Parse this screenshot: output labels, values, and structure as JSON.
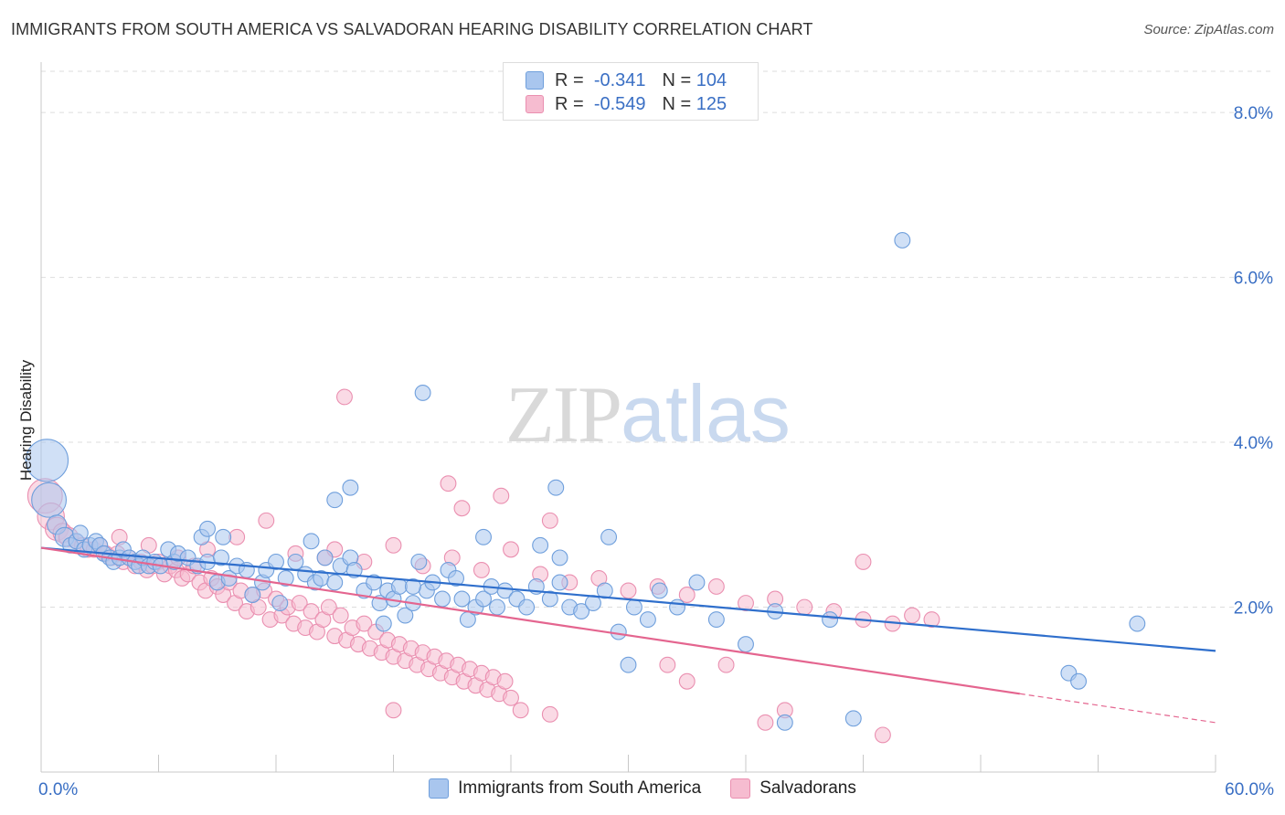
{
  "title": "IMMIGRANTS FROM SOUTH AMERICA VS SALVADORAN HEARING DISABILITY CORRELATION CHART",
  "source": "Source: ZipAtlas.com",
  "watermark": {
    "part1": "ZIP",
    "part2": "atlas"
  },
  "legend": {
    "rows": [
      {
        "r_label": "R =",
        "r_value": "-0.341",
        "n_label": "N =",
        "n_value": "104"
      },
      {
        "r_label": "R =",
        "r_value": "-0.549",
        "n_label": "N =",
        "n_value": "125"
      }
    ]
  },
  "colors": {
    "blue_fill": "#a9c6ee",
    "blue_stroke": "#6f9fdc",
    "blue_line": "#2f6fcc",
    "pink_fill": "#f6bcd0",
    "pink_stroke": "#ea8fb0",
    "pink_line": "#e4658f",
    "grid": "#dddddd",
    "tick_text": "#3a6fc4"
  },
  "chart_data": {
    "type": "scatter",
    "title": "IMMIGRANTS FROM SOUTH AMERICA VS SALVADORAN HEARING DISABILITY CORRELATION CHART",
    "xlabel": "",
    "ylabel": "Hearing Disability",
    "xlim": [
      0,
      60
    ],
    "ylim": [
      0,
      8.5
    ],
    "x_ticks": [
      "0.0%",
      "60.0%"
    ],
    "y_ticks": [
      {
        "value": 2,
        "label": "2.0%"
      },
      {
        "value": 4,
        "label": "4.0%"
      },
      {
        "value": 6,
        "label": "6.0%"
      },
      {
        "value": 8,
        "label": "8.0%"
      }
    ],
    "grid": "horizontal dashed",
    "legend_position": "top-center",
    "series": [
      {
        "name": "Immigrants from South America",
        "color": "#a9c6ee",
        "trend": {
          "x": [
            0,
            60
          ],
          "y": [
            2.72,
            1.47
          ]
        },
        "points": [
          [
            0.3,
            3.78,
            11
          ],
          [
            0.4,
            3.3,
            9
          ],
          [
            0.8,
            3.0,
            5
          ],
          [
            1.2,
            2.85,
            5
          ],
          [
            1.5,
            2.75,
            4
          ],
          [
            1.8,
            2.8,
            4
          ],
          [
            2.0,
            2.9,
            4
          ],
          [
            2.2,
            2.7,
            4
          ],
          [
            2.5,
            2.75,
            4
          ],
          [
            2.8,
            2.8,
            4
          ],
          [
            3.0,
            2.75,
            4
          ],
          [
            3.2,
            2.65,
            4
          ],
          [
            3.5,
            2.6,
            4
          ],
          [
            3.7,
            2.55,
            4
          ],
          [
            4.0,
            2.6,
            4
          ],
          [
            4.2,
            2.7,
            4
          ],
          [
            4.5,
            2.6,
            4
          ],
          [
            4.8,
            2.55,
            4
          ],
          [
            5.0,
            2.5,
            4
          ],
          [
            5.2,
            2.6,
            4
          ],
          [
            5.5,
            2.5,
            4
          ],
          [
            5.8,
            2.55,
            4
          ],
          [
            6.1,
            2.5,
            4
          ],
          [
            6.5,
            2.7,
            4
          ],
          [
            6.8,
            2.55,
            4
          ],
          [
            7.0,
            2.65,
            4
          ],
          [
            7.5,
            2.6,
            4
          ],
          [
            8.0,
            2.5,
            4
          ],
          [
            8.2,
            2.85,
            4
          ],
          [
            8.5,
            2.55,
            4
          ],
          [
            9.0,
            2.3,
            4
          ],
          [
            9.2,
            2.6,
            4
          ],
          [
            9.6,
            2.35,
            4
          ],
          [
            10.0,
            2.5,
            4
          ],
          [
            10.5,
            2.45,
            4
          ],
          [
            10.8,
            2.15,
            4
          ],
          [
            11.3,
            2.3,
            4
          ],
          [
            11.5,
            2.45,
            4
          ],
          [
            12.0,
            2.55,
            4
          ],
          [
            12.2,
            2.05,
            4
          ],
          [
            12.5,
            2.35,
            4
          ],
          [
            13.0,
            2.55,
            4
          ],
          [
            13.5,
            2.4,
            4
          ],
          [
            14.0,
            2.3,
            4
          ],
          [
            14.3,
            2.35,
            4
          ],
          [
            14.5,
            2.6,
            4
          ],
          [
            15.0,
            2.3,
            4
          ],
          [
            15.3,
            2.5,
            4
          ],
          [
            15.8,
            2.6,
            4
          ],
          [
            16.0,
            2.45,
            4
          ],
          [
            16.5,
            2.2,
            4
          ],
          [
            17.0,
            2.3,
            4
          ],
          [
            17.3,
            2.05,
            4
          ],
          [
            17.7,
            2.2,
            4
          ],
          [
            18.0,
            2.1,
            4
          ],
          [
            18.3,
            2.25,
            4
          ],
          [
            18.6,
            1.9,
            4
          ],
          [
            19.0,
            2.05,
            4
          ],
          [
            19.3,
            2.55,
            4
          ],
          [
            19.7,
            2.2,
            4
          ],
          [
            20.0,
            2.3,
            4
          ],
          [
            20.5,
            2.1,
            4
          ],
          [
            20.8,
            2.45,
            4
          ],
          [
            21.2,
            2.35,
            4
          ],
          [
            21.5,
            2.1,
            4
          ],
          [
            21.8,
            1.85,
            4
          ],
          [
            22.2,
            2.0,
            4
          ],
          [
            22.6,
            2.1,
            4
          ],
          [
            23.0,
            2.25,
            4
          ],
          [
            23.3,
            2.0,
            4
          ],
          [
            23.7,
            2.2,
            4
          ],
          [
            24.3,
            2.1,
            4
          ],
          [
            24.8,
            2.0,
            4
          ],
          [
            25.3,
            2.25,
            4
          ],
          [
            26.0,
            2.1,
            4
          ],
          [
            26.5,
            2.3,
            4
          ],
          [
            27.0,
            2.0,
            4
          ],
          [
            27.6,
            1.95,
            4
          ],
          [
            28.2,
            2.05,
            4
          ],
          [
            28.8,
            2.2,
            4
          ],
          [
            29.5,
            1.7,
            4
          ],
          [
            30.3,
            2.0,
            4
          ],
          [
            31.0,
            1.85,
            4
          ],
          [
            31.6,
            2.2,
            4
          ],
          [
            32.5,
            2.0,
            4
          ],
          [
            33.5,
            2.3,
            4
          ],
          [
            8.5,
            2.95,
            4
          ],
          [
            9.3,
            2.85,
            4
          ],
          [
            13.8,
            2.8,
            4
          ],
          [
            15.0,
            3.3,
            4
          ],
          [
            15.8,
            3.45,
            4
          ],
          [
            17.5,
            1.8,
            4
          ],
          [
            19.0,
            2.25,
            4
          ],
          [
            22.6,
            2.85,
            4
          ],
          [
            25.5,
            2.75,
            4
          ],
          [
            26.3,
            3.45,
            4
          ],
          [
            26.5,
            2.6,
            4
          ],
          [
            29.0,
            2.85,
            4
          ],
          [
            30.0,
            1.3,
            4
          ],
          [
            34.5,
            1.85,
            4
          ],
          [
            36.0,
            1.55,
            4
          ],
          [
            37.5,
            1.95,
            4
          ],
          [
            40.3,
            1.85,
            4
          ],
          [
            41.5,
            0.65,
            4
          ],
          [
            44.0,
            6.45,
            4
          ],
          [
            38.0,
            0.6,
            4
          ],
          [
            52.5,
            1.2,
            4
          ],
          [
            53.0,
            1.1,
            4
          ],
          [
            56.0,
            1.8,
            4
          ],
          [
            19.5,
            4.6,
            4
          ]
        ]
      },
      {
        "name": "Salvadorans",
        "color": "#f6bcd0",
        "trend": {
          "x": [
            0,
            50
          ],
          "y": [
            2.72,
            0.95
          ],
          "dashed_extension": {
            "x": [
              50,
              60
            ],
            "y": [
              0.95,
              0.6
            ]
          }
        },
        "points": [
          [
            0.2,
            3.35,
            9
          ],
          [
            0.5,
            3.1,
            7
          ],
          [
            0.8,
            2.95,
            6
          ],
          [
            1.1,
            2.9,
            5
          ],
          [
            1.4,
            2.85,
            5
          ],
          [
            1.8,
            2.8,
            4
          ],
          [
            2.1,
            2.75,
            4
          ],
          [
            2.4,
            2.7,
            4
          ],
          [
            2.7,
            2.7,
            4
          ],
          [
            3.0,
            2.75,
            4
          ],
          [
            3.3,
            2.65,
            4
          ],
          [
            3.6,
            2.6,
            4
          ],
          [
            3.9,
            2.65,
            4
          ],
          [
            4.2,
            2.55,
            4
          ],
          [
            4.5,
            2.6,
            4
          ],
          [
            4.8,
            2.5,
            4
          ],
          [
            5.1,
            2.55,
            4
          ],
          [
            5.4,
            2.45,
            4
          ],
          [
            5.7,
            2.5,
            4
          ],
          [
            6.0,
            2.55,
            4
          ],
          [
            6.3,
            2.4,
            4
          ],
          [
            6.6,
            2.5,
            4
          ],
          [
            6.9,
            2.45,
            4
          ],
          [
            7.2,
            2.35,
            4
          ],
          [
            7.5,
            2.4,
            4
          ],
          [
            7.8,
            2.5,
            4
          ],
          [
            8.1,
            2.3,
            4
          ],
          [
            8.4,
            2.2,
            4
          ],
          [
            8.7,
            2.35,
            4
          ],
          [
            9.0,
            2.25,
            4
          ],
          [
            9.3,
            2.15,
            4
          ],
          [
            9.6,
            2.3,
            4
          ],
          [
            9.9,
            2.05,
            4
          ],
          [
            10.2,
            2.2,
            4
          ],
          [
            10.5,
            1.95,
            4
          ],
          [
            10.8,
            2.15,
            4
          ],
          [
            11.1,
            2.0,
            4
          ],
          [
            11.4,
            2.2,
            4
          ],
          [
            11.7,
            1.85,
            4
          ],
          [
            12.0,
            2.1,
            4
          ],
          [
            12.3,
            1.9,
            4
          ],
          [
            12.6,
            2.0,
            4
          ],
          [
            12.9,
            1.8,
            4
          ],
          [
            13.2,
            2.05,
            4
          ],
          [
            13.5,
            1.75,
            4
          ],
          [
            13.8,
            1.95,
            4
          ],
          [
            14.1,
            1.7,
            4
          ],
          [
            14.4,
            1.85,
            4
          ],
          [
            14.7,
            2.0,
            4
          ],
          [
            15.0,
            1.65,
            4
          ],
          [
            15.3,
            1.9,
            4
          ],
          [
            15.6,
            1.6,
            4
          ],
          [
            15.9,
            1.75,
            4
          ],
          [
            16.2,
            1.55,
            4
          ],
          [
            16.5,
            1.8,
            4
          ],
          [
            16.8,
            1.5,
            4
          ],
          [
            17.1,
            1.7,
            4
          ],
          [
            17.4,
            1.45,
            4
          ],
          [
            17.7,
            1.6,
            4
          ],
          [
            18.0,
            1.4,
            4
          ],
          [
            18.3,
            1.55,
            4
          ],
          [
            18.6,
            1.35,
            4
          ],
          [
            18.9,
            1.5,
            4
          ],
          [
            19.2,
            1.3,
            4
          ],
          [
            19.5,
            1.45,
            4
          ],
          [
            19.8,
            1.25,
            4
          ],
          [
            20.1,
            1.4,
            4
          ],
          [
            20.4,
            1.2,
            4
          ],
          [
            20.7,
            1.35,
            4
          ],
          [
            21.0,
            1.15,
            4
          ],
          [
            21.3,
            1.3,
            4
          ],
          [
            21.6,
            1.1,
            4
          ],
          [
            21.9,
            1.25,
            4
          ],
          [
            22.2,
            1.05,
            4
          ],
          [
            22.5,
            1.2,
            4
          ],
          [
            22.8,
            1.0,
            4
          ],
          [
            23.1,
            1.15,
            4
          ],
          [
            23.4,
            0.95,
            4
          ],
          [
            23.7,
            1.1,
            4
          ],
          [
            24.0,
            0.9,
            4
          ],
          [
            4.0,
            2.85,
            4
          ],
          [
            5.5,
            2.75,
            4
          ],
          [
            7.0,
            2.6,
            4
          ],
          [
            8.5,
            2.7,
            4
          ],
          [
            10.0,
            2.85,
            4
          ],
          [
            11.5,
            3.05,
            4
          ],
          [
            13.0,
            2.65,
            4
          ],
          [
            14.5,
            2.6,
            4
          ],
          [
            15.0,
            2.7,
            4
          ],
          [
            16.5,
            2.55,
            4
          ],
          [
            18.0,
            2.75,
            4
          ],
          [
            19.5,
            2.5,
            4
          ],
          [
            21.0,
            2.6,
            4
          ],
          [
            22.5,
            2.45,
            4
          ],
          [
            24.0,
            2.7,
            4
          ],
          [
            25.5,
            2.4,
            4
          ],
          [
            27.0,
            2.3,
            4
          ],
          [
            28.5,
            2.35,
            4
          ],
          [
            30.0,
            2.2,
            4
          ],
          [
            31.5,
            2.25,
            4
          ],
          [
            33.0,
            2.15,
            4
          ],
          [
            34.5,
            2.25,
            4
          ],
          [
            36.0,
            2.05,
            4
          ],
          [
            37.5,
            2.1,
            4
          ],
          [
            39.0,
            2.0,
            4
          ],
          [
            40.5,
            1.95,
            4
          ],
          [
            42.0,
            1.85,
            4
          ],
          [
            43.5,
            1.8,
            4
          ],
          [
            44.5,
            1.9,
            4
          ],
          [
            45.5,
            1.85,
            4
          ],
          [
            20.8,
            3.5,
            4
          ],
          [
            21.5,
            3.2,
            4
          ],
          [
            23.5,
            3.35,
            4
          ],
          [
            26.0,
            3.05,
            4
          ],
          [
            15.5,
            4.55,
            4
          ],
          [
            18.0,
            0.75,
            4
          ],
          [
            24.5,
            0.75,
            4
          ],
          [
            26.0,
            0.7,
            4
          ],
          [
            32.0,
            1.3,
            4
          ],
          [
            33.0,
            1.1,
            4
          ],
          [
            35.0,
            1.3,
            4
          ],
          [
            37.0,
            0.6,
            4
          ],
          [
            38.0,
            0.75,
            4
          ],
          [
            42.0,
            2.55,
            4
          ],
          [
            43.0,
            0.45,
            4
          ]
        ]
      }
    ]
  },
  "bottom_legend": {
    "items": [
      {
        "label": "Immigrants from South America"
      },
      {
        "label": "Salvadorans"
      }
    ]
  }
}
